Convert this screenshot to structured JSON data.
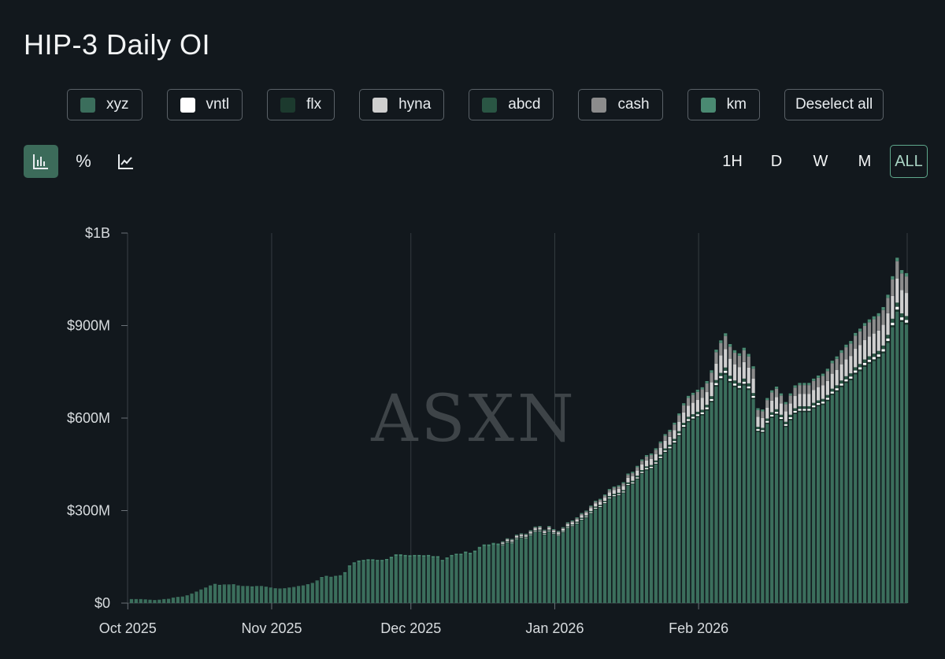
{
  "title": "HIP-3 Daily OI",
  "legend": [
    {
      "label": "xyz",
      "color": "#3b6e5c"
    },
    {
      "label": "vntl",
      "color": "#ffffff"
    },
    {
      "label": "flx",
      "color": "#1c3a2e"
    },
    {
      "label": "hyna",
      "color": "#cfcfcf"
    },
    {
      "label": "abcd",
      "color": "#2a5644"
    },
    {
      "label": "cash",
      "color": "#8c8c8c"
    },
    {
      "label": "km",
      "color": "#4a8a72"
    }
  ],
  "deselect_label": "Deselect all",
  "view_modes": [
    {
      "icon": "bar-chart-icon",
      "active": true
    },
    {
      "icon": "percent-icon",
      "label": "%",
      "active": false
    },
    {
      "icon": "line-chart-icon",
      "active": false
    }
  ],
  "time_ranges": [
    {
      "label": "1H",
      "active": false
    },
    {
      "label": "D",
      "active": false
    },
    {
      "label": "W",
      "active": false
    },
    {
      "label": "M",
      "active": false
    },
    {
      "label": "ALL",
      "active": true
    }
  ],
  "watermark": "ASXN",
  "chart_data": {
    "type": "bar",
    "stacked": true,
    "title": "HIP-3 Daily OI",
    "y_ticks": [
      "$0",
      "$300M",
      "$600M",
      "$900M",
      "$1B"
    ],
    "y_tick_values": [
      0,
      300,
      600,
      900,
      1200
    ],
    "x_ticks": [
      "Oct 2025",
      "Nov 2025",
      "Dec 2025",
      "Jan 2026",
      "Feb 2026"
    ],
    "x_tick_day_index": [
      0,
      31,
      61,
      92,
      123
    ],
    "ylim": [
      0,
      1200
    ],
    "grid": "vertical",
    "units": "USD millions",
    "series_names": [
      "xyz",
      "vntl",
      "flx",
      "hyna",
      "abcd",
      "cash",
      "km"
    ],
    "totals": [
      13,
      13,
      13,
      12,
      11,
      10,
      11,
      13,
      14,
      18,
      20,
      21,
      25,
      31,
      37,
      44,
      50,
      57,
      62,
      59,
      60,
      60,
      61,
      57,
      55,
      55,
      54,
      55,
      55,
      53,
      50,
      48,
      47,
      48,
      50,
      52,
      55,
      57,
      61,
      65,
      73,
      84,
      88,
      85,
      88,
      90,
      100,
      122,
      132,
      138,
      140,
      142,
      142,
      140,
      140,
      143,
      150,
      158,
      158,
      156,
      155,
      156,
      156,
      155,
      156,
      152,
      152,
      140,
      148,
      156,
      160,
      160,
      167,
      163,
      170,
      182,
      190,
      190,
      195,
      193,
      200,
      210,
      208,
      222,
      226,
      225,
      236,
      248,
      250,
      238,
      250,
      240,
      234,
      246,
      262,
      268,
      278,
      292,
      300,
      316,
      332,
      338,
      352,
      370,
      378,
      382,
      392,
      420,
      426,
      445,
      466,
      480,
      485,
      502,
      524,
      548,
      562,
      585,
      615,
      648,
      672,
      682,
      692,
      700,
      720,
      755,
      822,
      852,
      875,
      840,
      820,
      810,
      828,
      808,
      768,
      632,
      628,
      665,
      690,
      702,
      680,
      652,
      680,
      706,
      714,
      714,
      714,
      728,
      738,
      744,
      760,
      786,
      800,
      820,
      838,
      850,
      876,
      890,
      908,
      920,
      930,
      940,
      960,
      1000,
      1060,
      1120,
      1080,
      1070
    ]
  }
}
